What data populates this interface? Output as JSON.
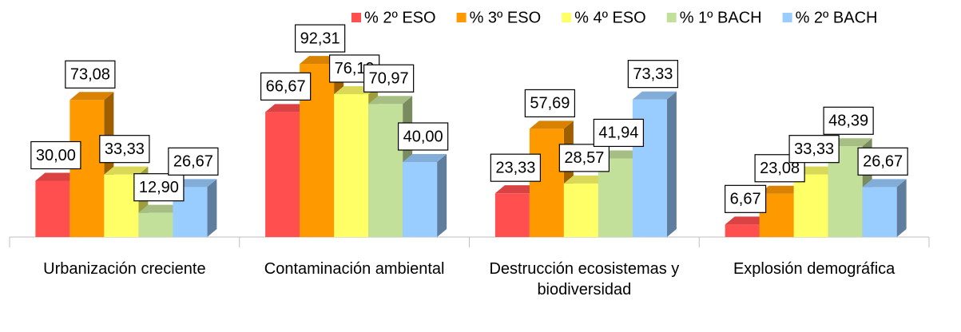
{
  "chart_data": {
    "type": "bar3d",
    "categories": [
      "Urbanización creciente",
      "Contaminación ambiental",
      "Destrucción ecosistemas y biodiversidad",
      "Explosión demográfica"
    ],
    "series": [
      {
        "name": "% 2º ESO",
        "color": "#ff4f4f",
        "values": [
          30.0,
          66.67,
          23.33,
          6.67
        ],
        "value_labels": [
          "30,00",
          "66,67",
          "23,33",
          "6,67"
        ]
      },
      {
        "name": "% 3º ESO",
        "color": "#ff9900",
        "values": [
          73.08,
          92.31,
          57.69,
          23.08
        ],
        "value_labels": [
          "73,08",
          "92,31",
          "57,69",
          "23,08"
        ]
      },
      {
        "name": "% 4º ESO",
        "color": "#ffff66",
        "values": [
          33.33,
          76.19,
          28.57,
          33.33
        ],
        "value_labels": [
          "33,33",
          "76,19",
          "28,57",
          "33,33"
        ]
      },
      {
        "name": "% 1º BACH",
        "color": "#c3e09a",
        "values": [
          12.9,
          70.97,
          41.94,
          48.39
        ],
        "value_labels": [
          "12,90",
          "70,97",
          "41,94",
          "48,39"
        ]
      },
      {
        "name": "% 2º BACH",
        "color": "#99ccff",
        "values": [
          26.67,
          40.0,
          73.33,
          26.67
        ],
        "value_labels": [
          "26,67",
          "40,00",
          "73,33",
          "26,67"
        ]
      }
    ],
    "ylim": [
      0,
      100
    ]
  }
}
